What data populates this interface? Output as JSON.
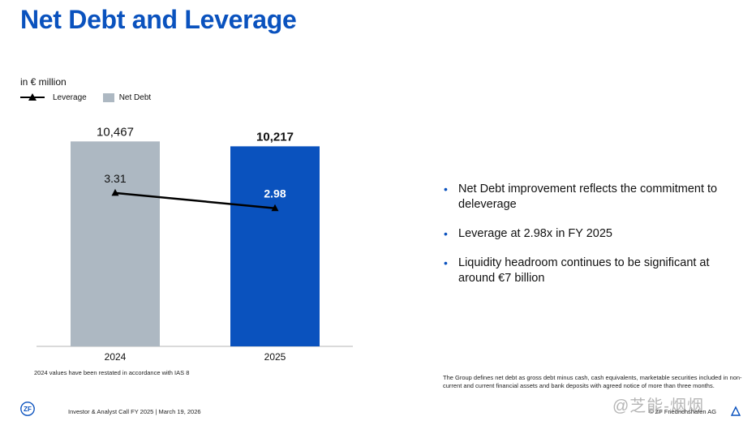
{
  "page": {
    "title": "Net Debt and Leverage",
    "unit": "in € million",
    "legend": {
      "leverage": "Leverage",
      "net_debt": "Net Debt"
    },
    "footnote_left": "2024 values have been restated in accordance with IAS 8",
    "bullets": [
      "Net Debt improvement reflects the commitment to deleverage",
      "Leverage at 2.98x in FY 2025",
      "Liquidity headroom continues to be significant at around €7 billion"
    ],
    "footnote_right": "The Group defines net debt as gross debt minus cash, cash equivalents, marketable securities included in non-current and current financial assets and bank deposits with agreed notice of more than three months.",
    "footer": "Investor & Analyst Call FY 2025 | March 19, 2026",
    "logo_text": "ZF",
    "copyright": "© ZF Friedrichshafen AG",
    "watermark": "@芝能-烟烟",
    "colors": {
      "title": "#0a52be",
      "bar_2024": "#adb8c2",
      "bar_2025": "#0a52be",
      "line": "#000000"
    }
  },
  "chart_data": {
    "type": "bar",
    "title": "",
    "ylabel": "in € million",
    "categories": [
      "2024",
      "2025"
    ],
    "series": [
      {
        "name": "Net Debt",
        "type": "bar",
        "values": [
          10467,
          10217
        ],
        "labels": [
          "10,467",
          "10,217"
        ]
      },
      {
        "name": "Leverage",
        "type": "line",
        "values": [
          3.31,
          2.98
        ],
        "labels": [
          "3.31",
          "2.98"
        ]
      }
    ],
    "ylim": [
      0,
      11600
    ],
    "leverage_ylim": [
      0,
      4.9
    ]
  }
}
